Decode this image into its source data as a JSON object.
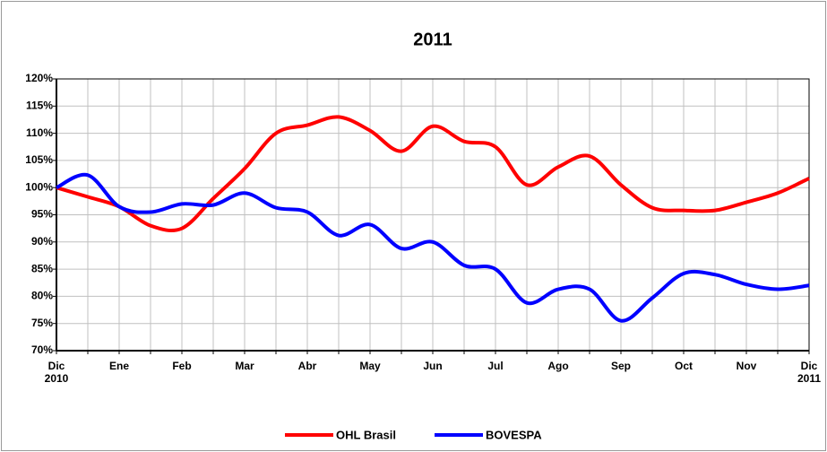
{
  "chart_data": {
    "type": "line",
    "title": "2011",
    "categories": [
      "Dic\n2010",
      null,
      "Ene",
      null,
      "Feb",
      null,
      "Mar",
      null,
      "Abr",
      null,
      "May",
      null,
      "Jun",
      null,
      "Jul",
      null,
      "Ago",
      null,
      "Sep",
      null,
      "Oct",
      null,
      "Nov",
      null,
      "Dic\n2011"
    ],
    "series": [
      {
        "name": "OHL Brasil",
        "color": "#ff0000",
        "values": [
          100,
          98.3,
          96.5,
          93,
          92.5,
          98,
          103.5,
          110,
          111.5,
          113,
          110.5,
          106.7,
          111.3,
          108.5,
          107.5,
          100.5,
          103.8,
          105.8,
          100.5,
          96.3,
          95.8,
          95.8,
          97.3,
          99,
          101.7
        ]
      },
      {
        "name": "BOVESPA",
        "color": "#0000ff",
        "values": [
          100,
          102.3,
          96.5,
          95.5,
          97,
          96.8,
          99,
          96.3,
          95.5,
          91.2,
          93.2,
          88.8,
          90,
          85.7,
          85,
          78.8,
          81.3,
          81.3,
          75.5,
          79.7,
          84.2,
          84,
          82.2,
          81.3,
          82
        ]
      }
    ],
    "ylim": [
      70,
      120
    ],
    "yticks": [
      {
        "value": 70,
        "label": "70%"
      },
      {
        "value": 75,
        "label": "75%"
      },
      {
        "value": 80,
        "label": "80%"
      },
      {
        "value": 85,
        "label": "85%"
      },
      {
        "value": 90,
        "label": "90%"
      },
      {
        "value": 95,
        "label": "95%"
      },
      {
        "value": 100,
        "label": "100%"
      },
      {
        "value": 105,
        "label": "105%"
      },
      {
        "value": 110,
        "label": "110%"
      },
      {
        "value": 115,
        "label": "115%"
      },
      {
        "value": 120,
        "label": "120%"
      }
    ],
    "grid": true,
    "legend": "bottom"
  }
}
